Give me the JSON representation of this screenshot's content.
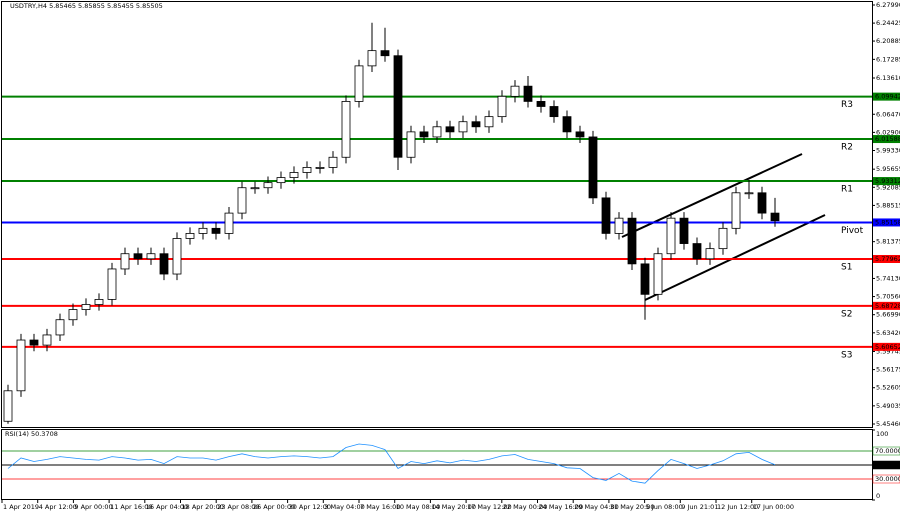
{
  "chart_data": [
    {
      "type": "candlestick",
      "title": "USDTRY,H4  5.85465 5.85855 5.85455 5.85505",
      "open": [
        5.46,
        5.52,
        5.62,
        5.61,
        5.63,
        5.66,
        5.68,
        5.69,
        5.7,
        5.76,
        5.79,
        5.78,
        5.79,
        5.75,
        5.82,
        5.83,
        5.84,
        5.83,
        5.87,
        5.92,
        5.92,
        5.93,
        5.94,
        5.95,
        5.96,
        5.96,
        5.98,
        6.09,
        6.16,
        6.19,
        6.18,
        5.98,
        6.03,
        6.02,
        6.04,
        6.03,
        6.05,
        6.04,
        6.06,
        6.1,
        6.12,
        6.09,
        6.08,
        6.06,
        6.03,
        6.02,
        5.9,
        5.83,
        5.86,
        5.77,
        5.71,
        5.79,
        5.86,
        5.81,
        5.78,
        5.8,
        5.84,
        5.91,
        5.91,
        5.87
      ],
      "high": [
        5.532,
        5.632,
        5.632,
        5.642,
        5.672,
        5.692,
        5.702,
        5.712,
        5.772,
        5.802,
        5.802,
        5.802,
        5.802,
        5.832,
        5.842,
        5.852,
        5.852,
        5.882,
        5.932,
        5.932,
        5.942,
        5.952,
        5.962,
        5.972,
        5.972,
        5.992,
        6.102,
        6.172,
        6.245,
        6.235,
        6.192,
        6.042,
        6.042,
        6.052,
        6.052,
        6.062,
        6.062,
        6.072,
        6.112,
        6.132,
        6.14,
        6.102,
        6.092,
        6.072,
        6.042,
        6.032,
        5.912,
        5.872,
        5.872,
        5.782,
        5.802,
        5.872,
        5.872,
        5.822,
        5.812,
        5.852,
        5.922,
        5.935,
        5.922,
        5.9
      ],
      "low": [
        5.455,
        5.508,
        5.598,
        5.598,
        5.618,
        5.648,
        5.668,
        5.678,
        5.688,
        5.748,
        5.768,
        5.768,
        5.738,
        5.738,
        5.808,
        5.818,
        5.818,
        5.818,
        5.858,
        5.908,
        5.908,
        5.918,
        5.928,
        5.938,
        5.948,
        5.948,
        5.968,
        6.078,
        6.148,
        6.168,
        5.955,
        5.968,
        6.008,
        6.008,
        6.018,
        6.018,
        6.028,
        6.028,
        6.048,
        6.088,
        6.078,
        6.068,
        6.048,
        6.018,
        6.008,
        5.888,
        5.818,
        5.818,
        5.758,
        5.66,
        5.698,
        5.778,
        5.798,
        5.768,
        5.768,
        5.788,
        5.828,
        5.898,
        5.858,
        5.843
      ],
      "close": [
        5.52,
        5.62,
        5.61,
        5.63,
        5.66,
        5.68,
        5.69,
        5.7,
        5.76,
        5.79,
        5.78,
        5.79,
        5.75,
        5.82,
        5.83,
        5.84,
        5.83,
        5.87,
        5.92,
        5.92,
        5.93,
        5.94,
        5.95,
        5.96,
        5.96,
        5.98,
        6.09,
        6.16,
        6.19,
        6.18,
        5.98,
        6.03,
        6.02,
        6.04,
        6.03,
        6.05,
        6.04,
        6.06,
        6.1,
        6.12,
        6.09,
        6.08,
        6.06,
        6.03,
        6.02,
        5.9,
        5.83,
        5.86,
        5.77,
        5.71,
        5.79,
        5.86,
        5.81,
        5.78,
        5.8,
        5.84,
        5.91,
        5.91,
        5.87,
        5.855
      ],
      "ylim": [
        5.4546,
        6.2799
      ],
      "yticks": [
        {
          "value": 6.2799,
          "label": "6.27990"
        },
        {
          "value": 6.24425,
          "label": "6.24425"
        },
        {
          "value": 6.20885,
          "label": "6.20885"
        },
        {
          "value": 6.17285,
          "label": "6.17285"
        },
        {
          "value": 6.1361,
          "label": "6.13610"
        },
        {
          "value": 6.0647,
          "label": "6.06470"
        },
        {
          "value": 6.029,
          "label": "6.02900"
        },
        {
          "value": 5.9933,
          "label": "5.99330"
        },
        {
          "value": 5.95655,
          "label": "5.95655"
        },
        {
          "value": 5.92085,
          "label": "5.92085"
        },
        {
          "value": 5.88515,
          "label": "5.88515"
        },
        {
          "value": 5.81375,
          "label": "5.81375"
        },
        {
          "value": 5.7413,
          "label": "5.74130"
        },
        {
          "value": 5.7056,
          "label": "5.70560"
        },
        {
          "value": 5.6699,
          "label": "5.66990"
        },
        {
          "value": 5.6342,
          "label": "5.63420"
        },
        {
          "value": 5.59745,
          "label": "5.59745"
        },
        {
          "value": 5.56175,
          "label": "5.56175"
        },
        {
          "value": 5.52605,
          "label": "5.52605"
        },
        {
          "value": 5.49035,
          "label": "5.49035"
        },
        {
          "value": 5.4546,
          "label": "5.45460"
        }
      ],
      "levels": [
        {
          "name": "R3",
          "value": 6.09942,
          "label": "6.09942",
          "color": "#008000"
        },
        {
          "name": "R2",
          "value": 6.01588,
          "label": "6.01588",
          "color": "#008000"
        },
        {
          "name": "R1",
          "value": 5.93312,
          "label": "5.93312",
          "color": "#008000"
        },
        {
          "name": "Pivot",
          "value": 5.85158,
          "label": "5.85158",
          "color": "#0000ff"
        },
        {
          "name": "S1",
          "value": 5.77962,
          "label": "5.77962",
          "color": "#ff0000"
        },
        {
          "name": "S2",
          "value": 5.68728,
          "label": "5.68728",
          "color": "#ff0000"
        },
        {
          "name": "S3",
          "value": 5.60652,
          "label": "5.60652",
          "color": "#ff0000"
        }
      ]
    },
    {
      "type": "line",
      "title": "RSI(14) 50.3708",
      "color": "#1e90ff",
      "values": [
        45,
        60,
        55,
        58,
        62,
        60,
        58,
        57,
        62,
        60,
        57,
        58,
        52,
        62,
        60,
        60,
        57,
        62,
        66,
        62,
        60,
        62,
        63,
        62,
        60,
        62,
        75,
        80,
        78,
        72,
        45,
        55,
        52,
        56,
        53,
        57,
        55,
        58,
        63,
        65,
        58,
        55,
        52,
        46,
        45,
        32,
        28,
        38,
        27,
        24,
        42,
        58,
        52,
        45,
        50,
        56,
        66,
        68,
        58,
        50.3708
      ],
      "ylim": [
        0,
        100
      ],
      "yticks": [
        100,
        0
      ],
      "levels": [
        {
          "value": 70,
          "label": "70.0000",
          "color": "#008000"
        },
        {
          "value": 50,
          "label": "50.0000",
          "color": "#000000"
        },
        {
          "value": 30,
          "label": "30.0000",
          "color": "#ff0000"
        }
      ],
      "x_labels": [
        "1 Apr 2019",
        "4 Apr 12:00",
        "9 Apr 00:00",
        "11 Apr 16:00",
        "16 Apr 04:00",
        "18 Apr 20:00",
        "23 Apr 08:00",
        "26 Apr 00:00",
        "30 Apr 12:00",
        "3 May 04:00",
        "7 May 16:00",
        "10 May 08:00",
        "14 May 20:00",
        "17 May 12:00",
        "22 May 00:00",
        "24 May 16:00",
        "29 May 04:00",
        "31 May 20:00",
        "5 Jun 08:00",
        "9 Jun 21:01",
        "12 Jun 12:00",
        "17 Jun 00:00"
      ]
    }
  ]
}
